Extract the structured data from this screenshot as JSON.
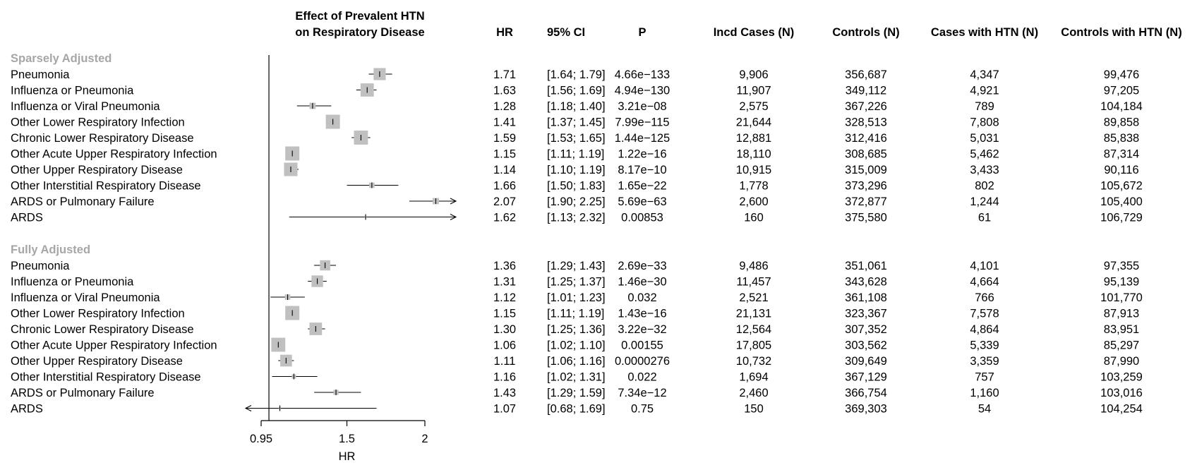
{
  "chart_data": {
    "type": "forest",
    "title": "Effect of Prevalent HTN on Respiratory Disease",
    "title_lines": [
      "Effect of Prevalent HTN",
      "on Respiratory Disease"
    ],
    "columns": [
      "HR",
      "95% CI",
      "P",
      "Incd Cases (N)",
      "Controls (N)",
      "Cases with HTN (N)",
      "Controls with HTN (N)"
    ],
    "xlabel": "HR",
    "xlim": [
      0.95,
      2
    ],
    "xticks": [
      0.95,
      1.5,
      2
    ],
    "xtick_labels": [
      "0.95",
      "1.5",
      "2"
    ],
    "reference_line": 1,
    "groups": [
      {
        "label": "Sparsely Adjusted",
        "rows": [
          {
            "name": "Pneumonia",
            "hr": 1.71,
            "lo": 1.64,
            "hi": 1.79,
            "hr_text": "1.71",
            "ci_text": "[1.64; 1.79]",
            "p": "4.66e−133",
            "cases": "9,906",
            "controls": "356,687",
            "cases_htn": "4,347",
            "controls_htn": "99,476"
          },
          {
            "name": "Influenza or Pneumonia",
            "hr": 1.63,
            "lo": 1.56,
            "hi": 1.69,
            "hr_text": "1.63",
            "ci_text": "[1.56; 1.69]",
            "p": "4.94e−130",
            "cases": "11,907",
            "controls": "349,112",
            "cases_htn": "4,921",
            "controls_htn": "97,205"
          },
          {
            "name": "Influenza or Viral Pneumonia",
            "hr": 1.28,
            "lo": 1.18,
            "hi": 1.4,
            "hr_text": "1.28",
            "ci_text": "[1.18; 1.40]",
            "p": "3.21e−08",
            "cases": "2,575",
            "controls": "367,226",
            "cases_htn": "789",
            "controls_htn": "104,184"
          },
          {
            "name": "Other Lower Respiratory Infection",
            "hr": 1.41,
            "lo": 1.37,
            "hi": 1.45,
            "hr_text": "1.41",
            "ci_text": "[1.37; 1.45]",
            "p": "7.99e−115",
            "cases": "21,644",
            "controls": "328,513",
            "cases_htn": "7,808",
            "controls_htn": "89,858"
          },
          {
            "name": "Chronic Lower Respiratory Disease",
            "hr": 1.59,
            "lo": 1.53,
            "hi": 1.65,
            "hr_text": "1.59",
            "ci_text": "[1.53; 1.65]",
            "p": "1.44e−125",
            "cases": "12,881",
            "controls": "312,416",
            "cases_htn": "5,031",
            "controls_htn": "85,838"
          },
          {
            "name": "Other Acute Upper Respiratory Infection",
            "hr": 1.15,
            "lo": 1.11,
            "hi": 1.19,
            "hr_text": "1.15",
            "ci_text": "[1.11; 1.19]",
            "p": "1.22e−16",
            "cases": "18,110",
            "controls": "308,685",
            "cases_htn": "5,462",
            "controls_htn": "87,314"
          },
          {
            "name": "Other Upper Respiratory Disease",
            "hr": 1.14,
            "lo": 1.1,
            "hi": 1.19,
            "hr_text": "1.14",
            "ci_text": "[1.10; 1.19]",
            "p": "8.17e−10",
            "cases": "10,915",
            "controls": "315,009",
            "cases_htn": "3,433",
            "controls_htn": "90,116"
          },
          {
            "name": "Other Interstitial Respiratory Disease",
            "hr": 1.66,
            "lo": 1.5,
            "hi": 1.83,
            "hr_text": "1.66",
            "ci_text": "[1.50; 1.83]",
            "p": "1.65e−22",
            "cases": "1,778",
            "controls": "373,296",
            "cases_htn": "802",
            "controls_htn": "105,672"
          },
          {
            "name": "ARDS or Pulmonary Failure",
            "hr": 2.07,
            "lo": 1.9,
            "hi": 2.25,
            "hr_text": "2.07",
            "ci_text": "[1.90; 2.25]",
            "p": "5.69e−63",
            "cases": "2,600",
            "controls": "372,877",
            "cases_htn": "1,244",
            "controls_htn": "105,400"
          },
          {
            "name": "ARDS",
            "hr": 1.62,
            "lo": 1.13,
            "hi": 2.32,
            "hr_text": "1.62",
            "ci_text": "[1.13; 2.32]",
            "p": "0.00853",
            "cases": "160",
            "controls": "375,580",
            "cases_htn": "61",
            "controls_htn": "106,729"
          }
        ]
      },
      {
        "label": "Fully Adjusted",
        "rows": [
          {
            "name": "Pneumonia",
            "hr": 1.36,
            "lo": 1.29,
            "hi": 1.43,
            "hr_text": "1.36",
            "ci_text": "[1.29; 1.43]",
            "p": "2.69e−33",
            "cases": "9,486",
            "controls": "351,061",
            "cases_htn": "4,101",
            "controls_htn": "97,355"
          },
          {
            "name": "Influenza or Pneumonia",
            "hr": 1.31,
            "lo": 1.25,
            "hi": 1.37,
            "hr_text": "1.31",
            "ci_text": "[1.25; 1.37]",
            "p": "1.46e−30",
            "cases": "11,457",
            "controls": "343,628",
            "cases_htn": "4,664",
            "controls_htn": "95,139"
          },
          {
            "name": "Influenza or Viral Pneumonia",
            "hr": 1.12,
            "lo": 1.01,
            "hi": 1.23,
            "hr_text": "1.12",
            "ci_text": "[1.01; 1.23]",
            "p": "0.032",
            "cases": "2,521",
            "controls": "361,108",
            "cases_htn": "766",
            "controls_htn": "101,770"
          },
          {
            "name": "Other Lower Respiratory Infection",
            "hr": 1.15,
            "lo": 1.11,
            "hi": 1.19,
            "hr_text": "1.15",
            "ci_text": "[1.11; 1.19]",
            "p": "1.43e−16",
            "cases": "21,131",
            "controls": "323,367",
            "cases_htn": "7,578",
            "controls_htn": "87,913"
          },
          {
            "name": "Chronic Lower Respiratory Disease",
            "hr": 1.3,
            "lo": 1.25,
            "hi": 1.36,
            "hr_text": "1.30",
            "ci_text": "[1.25; 1.36]",
            "p": "3.22e−32",
            "cases": "12,564",
            "controls": "307,352",
            "cases_htn": "4,864",
            "controls_htn": "83,951"
          },
          {
            "name": "Other Acute Upper Respiratory Infection",
            "hr": 1.06,
            "lo": 1.02,
            "hi": 1.1,
            "hr_text": "1.06",
            "ci_text": "[1.02; 1.10]",
            "p": "0.00155",
            "cases": "17,805",
            "controls": "303,562",
            "cases_htn": "5,339",
            "controls_htn": "85,297"
          },
          {
            "name": "Other Upper Respiratory Disease",
            "hr": 1.11,
            "lo": 1.06,
            "hi": 1.16,
            "hr_text": "1.11",
            "ci_text": "[1.06; 1.16]",
            "p": "0.0000276",
            "cases": "10,732",
            "controls": "309,649",
            "cases_htn": "3,359",
            "controls_htn": "87,990"
          },
          {
            "name": "Other Interstitial Respiratory Disease",
            "hr": 1.16,
            "lo": 1.02,
            "hi": 1.31,
            "hr_text": "1.16",
            "ci_text": "[1.02; 1.31]",
            "p": "0.022",
            "cases": "1,694",
            "controls": "367,129",
            "cases_htn": "757",
            "controls_htn": "103,259"
          },
          {
            "name": "ARDS or Pulmonary Failure",
            "hr": 1.43,
            "lo": 1.29,
            "hi": 1.59,
            "hr_text": "1.43",
            "ci_text": "[1.29; 1.59]",
            "p": "7.34e−12",
            "cases": "2,460",
            "controls": "366,754",
            "cases_htn": "1,160",
            "controls_htn": "103,016"
          },
          {
            "name": "ARDS",
            "hr": 1.07,
            "lo": 0.68,
            "hi": 1.69,
            "hr_text": "1.07",
            "ci_text": "[0.68; 1.69]",
            "p": "0.75",
            "cases": "150",
            "controls": "369,303",
            "cases_htn": "54",
            "controls_htn": "104,254"
          }
        ]
      }
    ]
  }
}
